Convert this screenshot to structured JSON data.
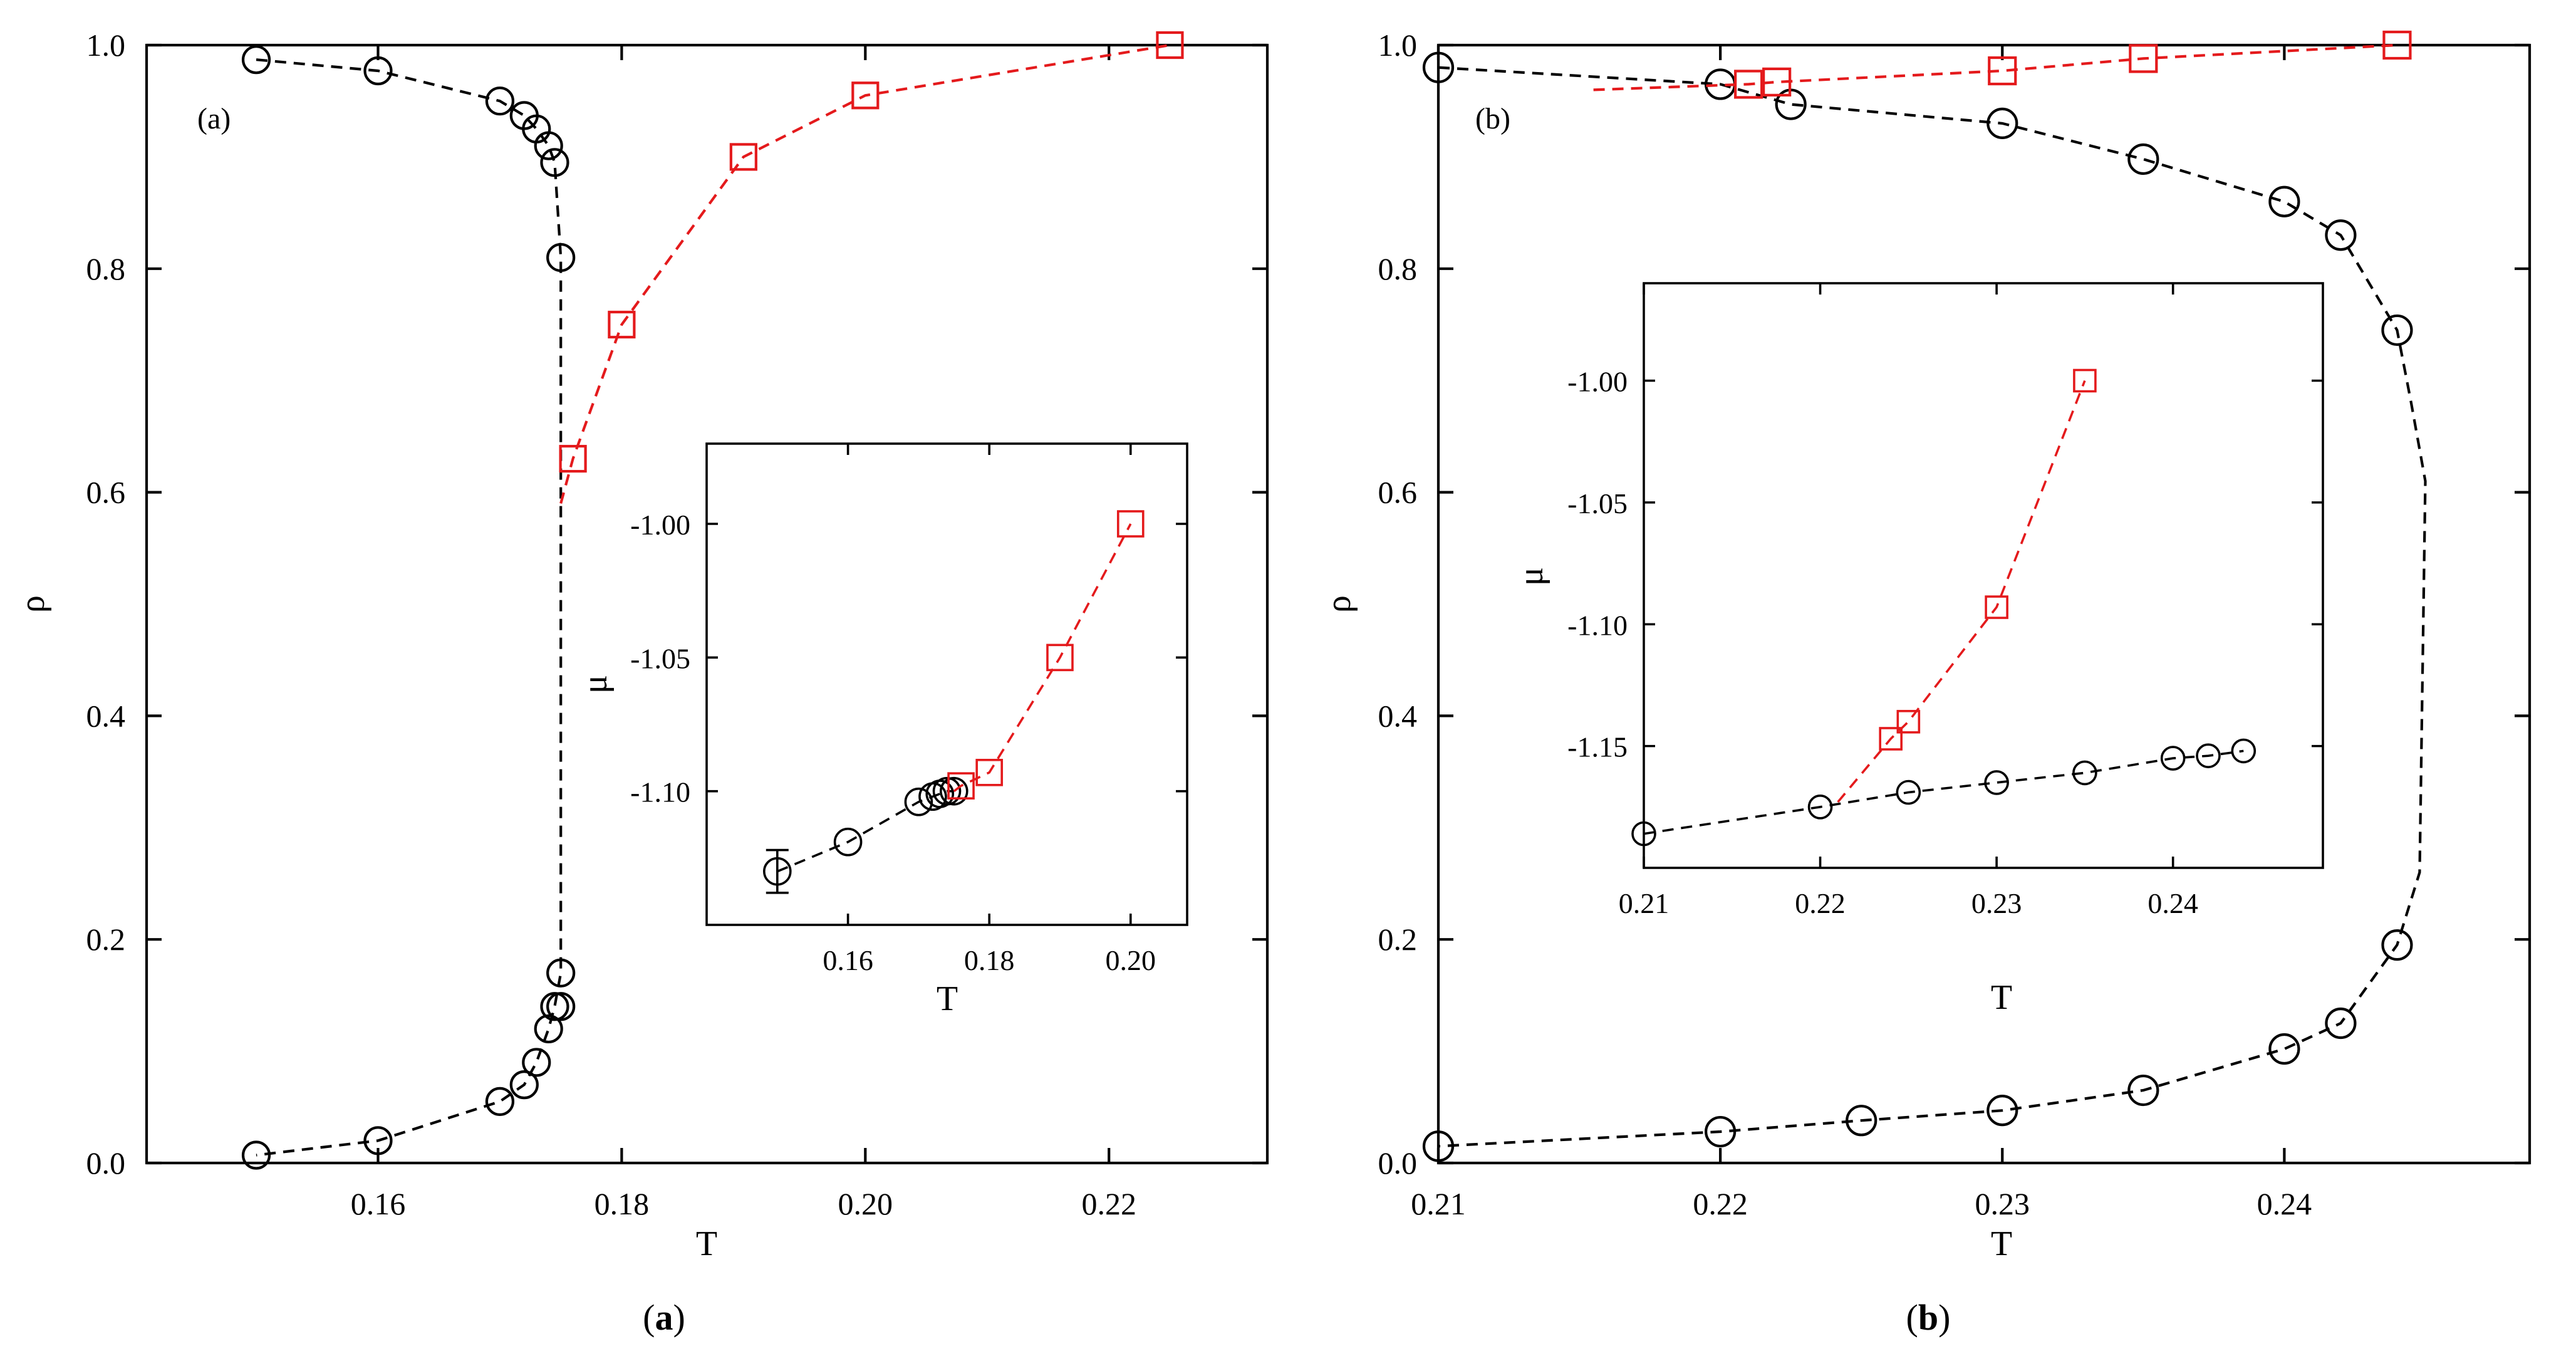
{
  "figure": {
    "captions": [
      {
        "open": "(",
        "letter": "a",
        "close": ")"
      },
      {
        "open": "(",
        "letter": "b",
        "close": ")"
      }
    ]
  },
  "colors": {
    "black": "#000000",
    "red": "#e41a1c"
  },
  "chart_data": [
    {
      "id": "a-main",
      "type": "line",
      "tag": "(a)",
      "xlabel": "T",
      "ylabel": "ρ",
      "xlim": [
        0.141,
        0.233
      ],
      "ylim": [
        0.0,
        1.0
      ],
      "xticks": [
        0.16,
        0.18,
        0.2,
        0.22
      ],
      "xtick_labels": [
        "0.16",
        "0.18",
        "0.20",
        "0.22"
      ],
      "yticks": [
        0.0,
        0.2,
        0.4,
        0.6,
        0.8,
        1.0
      ],
      "ytick_labels": [
        "0.0",
        "0.2",
        "0.4",
        "0.6",
        "0.8",
        "1.0"
      ],
      "series": [
        {
          "name": "circles",
          "color": "#000000",
          "marker": "circle",
          "x": [
            0.15,
            0.16,
            0.17,
            0.172,
            0.173,
            0.174,
            0.1745,
            0.175,
            0.175,
            0.175,
            0.1745,
            0.174,
            0.173,
            0.172,
            0.17,
            0.16,
            0.15
          ],
          "y": [
            0.987,
            0.977,
            0.95,
            0.937,
            0.925,
            0.91,
            0.895,
            0.81,
            0.17,
            0.14,
            0.14,
            0.12,
            0.09,
            0.07,
            0.055,
            0.02,
            0.007
          ],
          "curve_x": [
            0.15,
            0.16,
            0.17,
            0.172,
            0.173,
            0.174,
            0.1745,
            0.175,
            0.175,
            0.1745,
            0.174,
            0.173,
            0.172,
            0.17,
            0.16,
            0.15
          ],
          "curve_y": [
            0.987,
            0.977,
            0.95,
            0.937,
            0.925,
            0.91,
            0.895,
            0.81,
            0.17,
            0.14,
            0.12,
            0.09,
            0.07,
            0.055,
            0.02,
            0.007
          ]
        },
        {
          "name": "squares",
          "color": "#e41a1c",
          "marker": "square",
          "x": [
            0.176,
            0.18,
            0.19,
            0.2,
            0.225
          ],
          "y": [
            0.63,
            0.75,
            0.9,
            0.955,
            1.0
          ],
          "curve_x": [
            0.175,
            0.176,
            0.18,
            0.19,
            0.2,
            0.225
          ],
          "curve_y": [
            0.59,
            0.63,
            0.75,
            0.9,
            0.955,
            1.0
          ]
        }
      ]
    },
    {
      "id": "a-inset",
      "type": "line",
      "xlabel": "T",
      "ylabel": "μ",
      "xlim": [
        0.14,
        0.208
      ],
      "ylim": [
        -1.15,
        -0.97
      ],
      "xticks": [
        0.16,
        0.18,
        0.2
      ],
      "xtick_labels": [
        "0.16",
        "0.18",
        "0.20"
      ],
      "yticks": [
        -1.1,
        -1.05,
        -1.0
      ],
      "ytick_labels": [
        "-1.10",
        "-1.05",
        "-1.00"
      ],
      "series": [
        {
          "name": "circles",
          "color": "#000000",
          "marker": "circle",
          "x": [
            0.15,
            0.16,
            0.17,
            0.172,
            0.173,
            0.174,
            0.175
          ],
          "y": [
            -1.13,
            -1.119,
            -1.104,
            -1.102,
            -1.101,
            -1.1,
            -1.1
          ],
          "yerr": [
            0.008,
            0,
            0,
            0,
            0,
            0,
            0
          ],
          "curve_x": [
            0.15,
            0.16,
            0.17,
            0.172,
            0.173,
            0.174,
            0.175
          ],
          "curve_y": [
            -1.13,
            -1.119,
            -1.104,
            -1.102,
            -1.101,
            -1.1,
            -1.1
          ]
        },
        {
          "name": "squares",
          "color": "#e41a1c",
          "marker": "square",
          "x": [
            0.176,
            0.18,
            0.19,
            0.2
          ],
          "y": [
            -1.098,
            -1.093,
            -1.05,
            -1.0
          ],
          "curve_x": [
            0.175,
            0.176,
            0.18,
            0.19,
            0.2
          ],
          "curve_y": [
            -1.1,
            -1.098,
            -1.093,
            -1.05,
            -1.0
          ]
        }
      ]
    },
    {
      "id": "b-main",
      "type": "line",
      "tag": "(b)",
      "xlabel": "T",
      "ylabel": "ρ",
      "xlim": [
        0.21,
        0.2487
      ],
      "ylim": [
        0.0,
        1.0
      ],
      "xticks": [
        0.21,
        0.22,
        0.23,
        0.24
      ],
      "xtick_labels": [
        "0.21",
        "0.22",
        "0.23",
        "0.24"
      ],
      "yticks": [
        0.0,
        0.2,
        0.4,
        0.6,
        0.8,
        1.0
      ],
      "ytick_labels": [
        "0.0",
        "0.2",
        "0.4",
        "0.6",
        "0.8",
        "1.0"
      ],
      "series": [
        {
          "name": "circles",
          "color": "#000000",
          "marker": "circle",
          "x": [
            0.21,
            0.22,
            0.2225,
            0.23,
            0.235,
            0.24,
            0.242,
            0.244,
            0.244,
            0.242,
            0.24,
            0.235,
            0.23,
            0.225,
            0.22,
            0.21
          ],
          "y": [
            0.98,
            0.965,
            0.947,
            0.93,
            0.898,
            0.86,
            0.83,
            0.745,
            0.195,
            0.125,
            0.102,
            0.065,
            0.047,
            0.038,
            0.028,
            0.015
          ],
          "curve_x": [
            0.21,
            0.22,
            0.2225,
            0.23,
            0.235,
            0.24,
            0.242,
            0.244,
            0.2445,
            0.245,
            0.2448,
            0.244,
            0.242,
            0.24,
            0.235,
            0.23,
            0.225,
            0.22,
            0.21
          ],
          "curve_y": [
            0.98,
            0.965,
            0.947,
            0.93,
            0.898,
            0.86,
            0.83,
            0.745,
            0.68,
            0.61,
            0.26,
            0.195,
            0.125,
            0.102,
            0.065,
            0.047,
            0.038,
            0.028,
            0.015
          ]
        },
        {
          "name": "squares",
          "color": "#e41a1c",
          "marker": "square",
          "x": [
            0.221,
            0.222,
            0.23,
            0.235,
            0.244
          ],
          "y": [
            0.965,
            0.967,
            0.977,
            0.988,
            1.0
          ],
          "curve_x": [
            0.2155,
            0.221,
            0.222,
            0.23,
            0.235,
            0.244
          ],
          "curve_y": [
            0.96,
            0.965,
            0.967,
            0.977,
            0.988,
            1.0
          ]
        }
      ]
    },
    {
      "id": "b-inset",
      "type": "line",
      "xlabel": "T",
      "ylabel": "μ",
      "xlim": [
        0.21,
        0.2485
      ],
      "ylim": [
        -1.2,
        -0.96
      ],
      "xticks": [
        0.21,
        0.22,
        0.23,
        0.24
      ],
      "xtick_labels": [
        "0.21",
        "0.22",
        "0.23",
        "0.24"
      ],
      "yticks": [
        -1.15,
        -1.1,
        -1.05,
        -1.0
      ],
      "ytick_labels": [
        "-1.15",
        "-1.10",
        "-1.05",
        "-1.00"
      ],
      "series": [
        {
          "name": "circles",
          "color": "#000000",
          "marker": "circle",
          "x": [
            0.21,
            0.22,
            0.225,
            0.23,
            0.235,
            0.24,
            0.242,
            0.244
          ],
          "y": [
            -1.186,
            -1.175,
            -1.169,
            -1.165,
            -1.161,
            -1.155,
            -1.154,
            -1.152
          ],
          "curve_x": [
            0.21,
            0.22,
            0.225,
            0.23,
            0.235,
            0.24,
            0.242,
            0.244
          ],
          "curve_y": [
            -1.186,
            -1.175,
            -1.169,
            -1.165,
            -1.161,
            -1.155,
            -1.154,
            -1.152
          ]
        },
        {
          "name": "squares",
          "color": "#e41a1c",
          "marker": "square",
          "x": [
            0.224,
            0.225,
            0.23,
            0.235
          ],
          "y": [
            -1.147,
            -1.14,
            -1.093,
            -1.0
          ],
          "curve_x": [
            0.221,
            0.224,
            0.225,
            0.23,
            0.235
          ],
          "curve_y": [
            -1.173,
            -1.147,
            -1.14,
            -1.093,
            -1.0
          ]
        }
      ]
    }
  ]
}
